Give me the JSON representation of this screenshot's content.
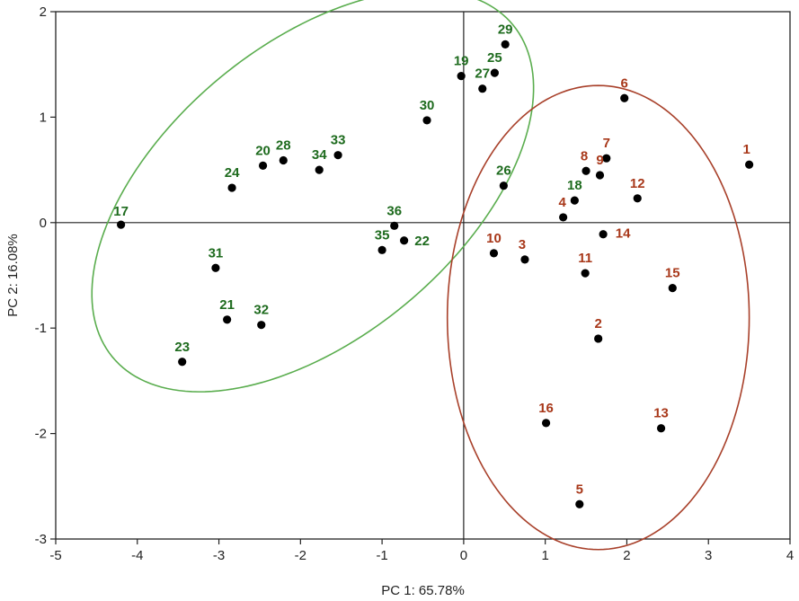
{
  "chart_data": {
    "type": "scatter",
    "title": "",
    "xlabel": "PC 1: 65.78%",
    "ylabel": "PC 2: 16.08%",
    "xlim": [
      -5,
      4
    ],
    "ylim": [
      -3,
      2
    ],
    "x_ticks": [
      "-5",
      "-4",
      "-3",
      "-2",
      "-1",
      "0",
      "1",
      "2",
      "3",
      "4"
    ],
    "y_ticks": [
      "-3",
      "-2",
      "-1",
      "0",
      "1",
      "2"
    ],
    "grid": false,
    "zero_lines": true,
    "colors": {
      "green": "#1e6b1e",
      "red": "#a8381a",
      "green_ellipse": "#5aad4e",
      "red_ellipse": "#a8402a",
      "point": "#000000",
      "axis": "#222222"
    },
    "groups": [
      {
        "name": "green",
        "color": "#1e6b1e",
        "ellipse": {
          "cx": -1.85,
          "cy": 0.3,
          "rx": 2.95,
          "ry": 1.5,
          "angle_deg": 27.5,
          "color": "#5aad4e"
        }
      },
      {
        "name": "red",
        "color": "#a8381a",
        "ellipse": {
          "cx": 1.65,
          "cy": -0.9,
          "rx": 1.85,
          "ry": 2.2,
          "angle_deg": 0,
          "color": "#a8402a"
        }
      }
    ],
    "points": [
      {
        "id": "1",
        "x": 3.5,
        "y": 0.55,
        "group": "red"
      },
      {
        "id": "2",
        "x": 1.65,
        "y": -1.1,
        "group": "red"
      },
      {
        "id": "3",
        "x": 0.75,
        "y": -0.35,
        "group": "red"
      },
      {
        "id": "4",
        "x": 1.22,
        "y": 0.05,
        "group": "red"
      },
      {
        "id": "5",
        "x": 1.42,
        "y": -2.67,
        "group": "red"
      },
      {
        "id": "6",
        "x": 1.97,
        "y": 1.18,
        "group": "red"
      },
      {
        "id": "7",
        "x": 1.75,
        "y": 0.61,
        "group": "red"
      },
      {
        "id": "8",
        "x": 1.5,
        "y": 0.49,
        "group": "red"
      },
      {
        "id": "9",
        "x": 1.67,
        "y": 0.45,
        "group": "red"
      },
      {
        "id": "10",
        "x": 0.37,
        "y": -0.29,
        "group": "red"
      },
      {
        "id": "11",
        "x": 1.49,
        "y": -0.48,
        "group": "red"
      },
      {
        "id": "12",
        "x": 2.13,
        "y": 0.23,
        "group": "red"
      },
      {
        "id": "13",
        "x": 2.42,
        "y": -1.95,
        "group": "red"
      },
      {
        "id": "14",
        "x": 1.71,
        "y": -0.11,
        "group": "red"
      },
      {
        "id": "15",
        "x": 2.56,
        "y": -0.62,
        "group": "red"
      },
      {
        "id": "16",
        "x": 1.01,
        "y": -1.9,
        "group": "red"
      },
      {
        "id": "17",
        "x": -4.2,
        "y": -0.02,
        "group": "green"
      },
      {
        "id": "18",
        "x": 1.36,
        "y": 0.21,
        "group": "green"
      },
      {
        "id": "19",
        "x": -0.03,
        "y": 1.39,
        "group": "green"
      },
      {
        "id": "20",
        "x": -2.46,
        "y": 0.54,
        "group": "green"
      },
      {
        "id": "21",
        "x": -2.9,
        "y": -0.92,
        "group": "green"
      },
      {
        "id": "22",
        "x": -0.73,
        "y": -0.17,
        "group": "green"
      },
      {
        "id": "23",
        "x": -3.45,
        "y": -1.32,
        "group": "green"
      },
      {
        "id": "24",
        "x": -2.84,
        "y": 0.33,
        "group": "green"
      },
      {
        "id": "25",
        "x": 0.38,
        "y": 1.42,
        "group": "green"
      },
      {
        "id": "26",
        "x": 0.49,
        "y": 0.35,
        "group": "green"
      },
      {
        "id": "27",
        "x": 0.23,
        "y": 1.27,
        "group": "green"
      },
      {
        "id": "28",
        "x": -2.21,
        "y": 0.59,
        "group": "green"
      },
      {
        "id": "29",
        "x": 0.51,
        "y": 1.69,
        "group": "green"
      },
      {
        "id": "30",
        "x": -0.45,
        "y": 0.97,
        "group": "green"
      },
      {
        "id": "31",
        "x": -3.04,
        "y": -0.43,
        "group": "green"
      },
      {
        "id": "32",
        "x": -2.48,
        "y": -0.97,
        "group": "green"
      },
      {
        "id": "33",
        "x": -1.54,
        "y": 0.64,
        "group": "green"
      },
      {
        "id": "34",
        "x": -1.77,
        "y": 0.5,
        "group": "green"
      },
      {
        "id": "35",
        "x": -1.0,
        "y": -0.26,
        "group": "green"
      },
      {
        "id": "36",
        "x": -0.85,
        "y": -0.03,
        "group": "green"
      }
    ]
  }
}
